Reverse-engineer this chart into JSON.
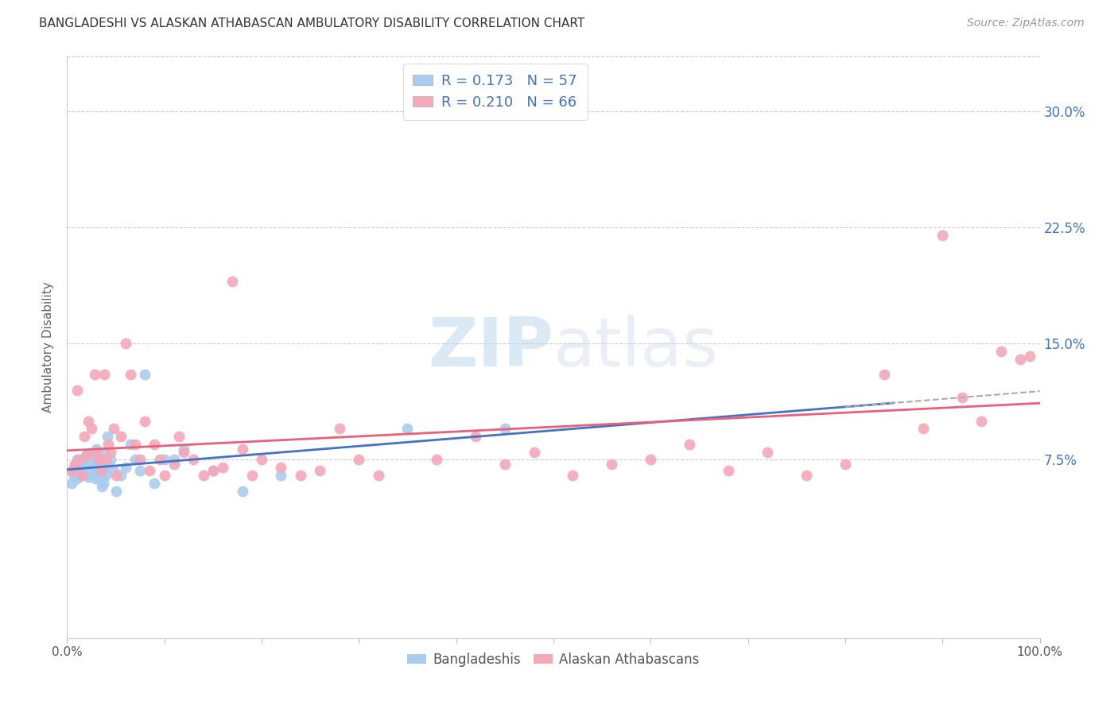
{
  "title": "BANGLADESHI VS ALASKAN ATHABASCAN AMBULATORY DISABILITY CORRELATION CHART",
  "source": "Source: ZipAtlas.com",
  "ylabel": "Ambulatory Disability",
  "yticks": [
    "7.5%",
    "15.0%",
    "22.5%",
    "30.0%"
  ],
  "ytick_vals": [
    0.075,
    0.15,
    0.225,
    0.3
  ],
  "xlim": [
    0.0,
    1.0
  ],
  "ylim": [
    -0.04,
    0.335
  ],
  "legend_line1": "R = 0.173   N = 57",
  "legend_line2": "R = 0.210   N = 66",
  "bangladeshi_color": "#aaccee",
  "alaskan_color": "#f4a8b8",
  "trend_blue": "#4472c4",
  "trend_pink": "#e8607a",
  "watermark_color": "#cce0f0",
  "bangladeshi_x": [
    0.005,
    0.007,
    0.008,
    0.009,
    0.01,
    0.01,
    0.01,
    0.011,
    0.012,
    0.013,
    0.014,
    0.015,
    0.016,
    0.017,
    0.018,
    0.019,
    0.02,
    0.021,
    0.022,
    0.023,
    0.024,
    0.025,
    0.026,
    0.027,
    0.028,
    0.029,
    0.03,
    0.031,
    0.032,
    0.033,
    0.034,
    0.035,
    0.036,
    0.037,
    0.038,
    0.039,
    0.04,
    0.041,
    0.042,
    0.045,
    0.048,
    0.05,
    0.055,
    0.06,
    0.065,
    0.07,
    0.075,
    0.08,
    0.09,
    0.1,
    0.11,
    0.12,
    0.15,
    0.18,
    0.22,
    0.35,
    0.45
  ],
  "bangladeshi_y": [
    0.06,
    0.065,
    0.07,
    0.068,
    0.072,
    0.075,
    0.063,
    0.07,
    0.068,
    0.065,
    0.072,
    0.067,
    0.075,
    0.07,
    0.065,
    0.078,
    0.073,
    0.068,
    0.064,
    0.072,
    0.078,
    0.065,
    0.07,
    0.075,
    0.067,
    0.063,
    0.082,
    0.07,
    0.068,
    0.075,
    0.063,
    0.065,
    0.058,
    0.06,
    0.08,
    0.07,
    0.065,
    0.09,
    0.072,
    0.075,
    0.068,
    0.055,
    0.065,
    0.07,
    0.085,
    0.075,
    0.068,
    0.13,
    0.06,
    0.075,
    0.075,
    0.082,
    0.068,
    0.055,
    0.065,
    0.095,
    0.095
  ],
  "alaskan_x": [
    0.005,
    0.008,
    0.01,
    0.012,
    0.015,
    0.018,
    0.02,
    0.022,
    0.025,
    0.028,
    0.03,
    0.032,
    0.035,
    0.038,
    0.04,
    0.042,
    0.045,
    0.048,
    0.05,
    0.055,
    0.06,
    0.065,
    0.07,
    0.075,
    0.08,
    0.085,
    0.09,
    0.095,
    0.1,
    0.11,
    0.115,
    0.12,
    0.13,
    0.14,
    0.15,
    0.16,
    0.17,
    0.18,
    0.19,
    0.2,
    0.22,
    0.24,
    0.26,
    0.28,
    0.3,
    0.32,
    0.38,
    0.42,
    0.45,
    0.48,
    0.52,
    0.56,
    0.6,
    0.64,
    0.68,
    0.72,
    0.76,
    0.8,
    0.84,
    0.88,
    0.9,
    0.92,
    0.94,
    0.96,
    0.98,
    0.99
  ],
  "alaskan_y": [
    0.068,
    0.072,
    0.12,
    0.075,
    0.065,
    0.09,
    0.078,
    0.1,
    0.095,
    0.13,
    0.08,
    0.075,
    0.068,
    0.13,
    0.075,
    0.085,
    0.08,
    0.095,
    0.065,
    0.09,
    0.15,
    0.13,
    0.085,
    0.075,
    0.1,
    0.068,
    0.085,
    0.075,
    0.065,
    0.072,
    0.09,
    0.08,
    0.075,
    0.065,
    0.068,
    0.07,
    0.19,
    0.082,
    0.065,
    0.075,
    0.07,
    0.065,
    0.068,
    0.095,
    0.075,
    0.065,
    0.075,
    0.09,
    0.072,
    0.08,
    0.065,
    0.072,
    0.075,
    0.085,
    0.068,
    0.08,
    0.065,
    0.072,
    0.13,
    0.095,
    0.22,
    0.115,
    0.1,
    0.145,
    0.14,
    0.142
  ]
}
